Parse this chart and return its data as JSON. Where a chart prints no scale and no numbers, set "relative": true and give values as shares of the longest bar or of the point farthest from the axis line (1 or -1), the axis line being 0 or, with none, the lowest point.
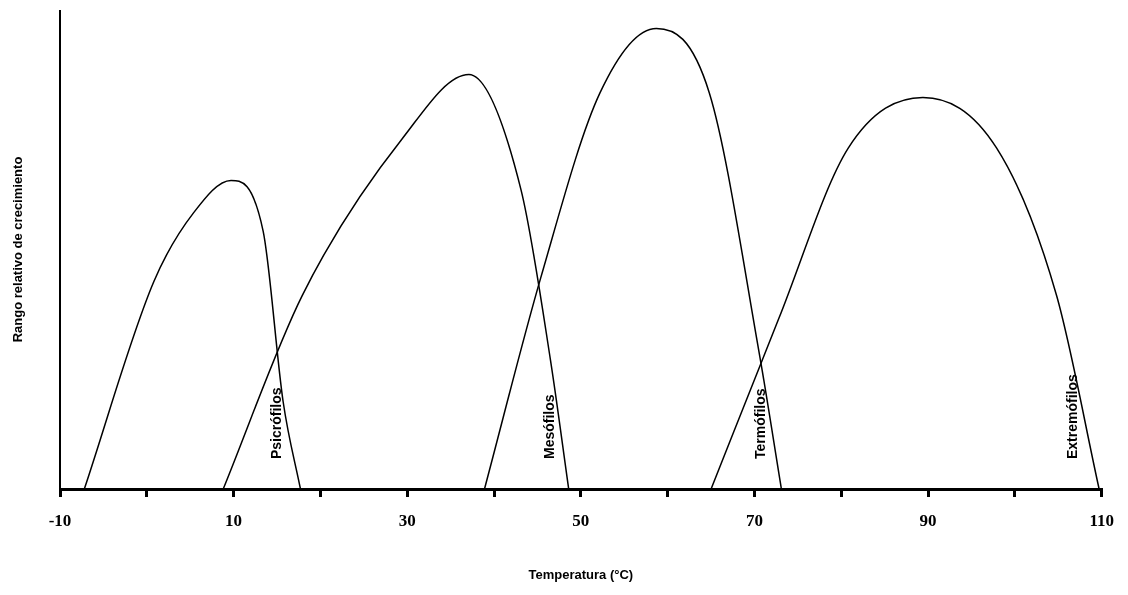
{
  "chart_data": {
    "type": "line",
    "relative": true,
    "xlabel": "Temperatura (°C)",
    "ylabel": "Rango relativo de crecimiento",
    "xlim": [
      -10,
      110
    ],
    "xticks": [
      {
        "value": -10,
        "label": "-10"
      },
      {
        "value": 0,
        "label": null
      },
      10,
      {
        "value": 20,
        "label": null
      },
      30,
      {
        "value": 40,
        "label": null
      },
      50,
      {
        "value": 60,
        "label": null
      },
      70,
      {
        "value": 80,
        "label": null
      },
      90,
      {
        "value": 100,
        "label": null
      },
      110
    ],
    "tick_labels": "x",
    "grid": false,
    "legend": false,
    "marker": "none",
    "line_style": "solid",
    "series": [
      {
        "name": "Psicrófilos",
        "color": "#000000",
        "x": [
          -7.2,
          0.8,
          5.4,
          9.7,
          13.4,
          15.7,
          17.7
        ],
        "values": [
          0,
          0.45,
          0.6,
          0.67,
          0.56,
          0.19,
          0
        ]
      },
      {
        "name": "Mesófilos",
        "color": "#000000",
        "x": [
          8.8,
          17.9,
          29.4,
          37.1,
          43.1,
          46.5,
          48.6
        ],
        "values": [
          0,
          0.42,
          0.76,
          0.9,
          0.65,
          0.28,
          0
        ]
      },
      {
        "name": "Termófilos",
        "color": "#000000",
        "x": [
          38.9,
          45.4,
          52.2,
          58.7,
          64.8,
          70.5,
          73.1
        ],
        "values": [
          0,
          0.46,
          0.86,
          1,
          0.86,
          0.3,
          0
        ]
      },
      {
        "name": "Extremófilos",
        "color": "#000000",
        "x": [
          65,
          72.8,
          80.8,
          89.4,
          97.9,
          104.8,
          109.7
        ],
        "values": [
          0,
          0.37,
          0.74,
          0.85,
          0.74,
          0.42,
          0
        ]
      }
    ]
  }
}
